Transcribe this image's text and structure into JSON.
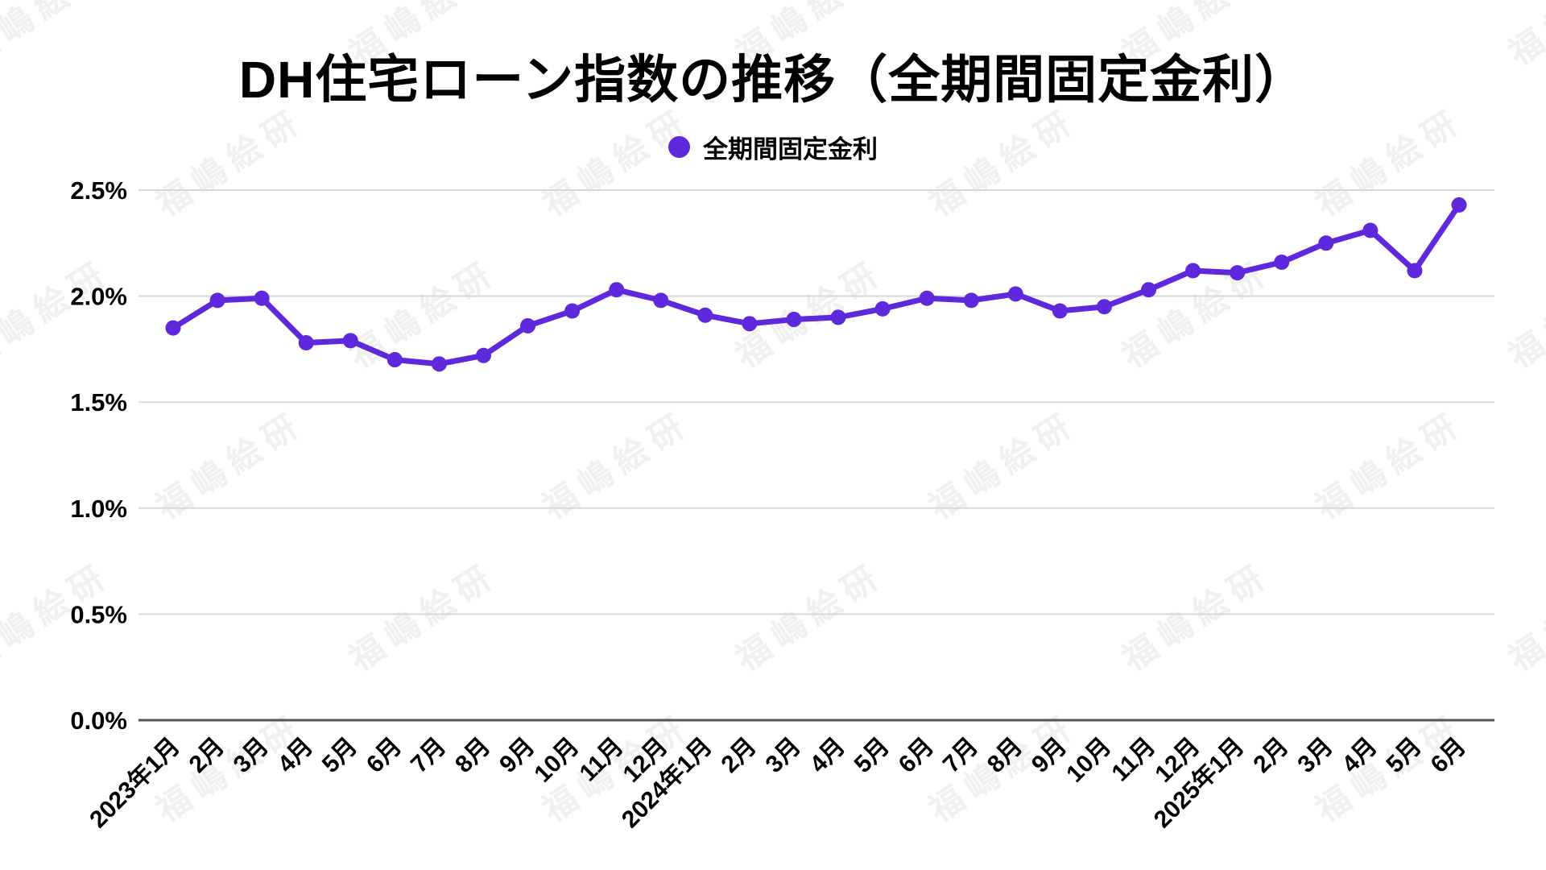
{
  "header": {
    "title": "DH住宅ローン指数の推移（全期間固定金利）"
  },
  "legend": {
    "label": "全期間固定金利",
    "marker_color": "#5e28dc"
  },
  "watermark": {
    "text": "福嶋絵研",
    "color": "#f0eff1"
  },
  "colors": {
    "line": "#5e28dc",
    "grid": "#d9d9d9",
    "axis": "#555555",
    "text": "#000000"
  },
  "chart_data": {
    "type": "line",
    "title": "DH住宅ローン指数の推移（全期間固定金利）",
    "legend_position": "top-center",
    "grid": "horizontal",
    "x_label_rotation": -45,
    "ylim": [
      0,
      2.5
    ],
    "y_ticks": [
      "0.0%",
      "0.5%",
      "1.0%",
      "1.5%",
      "2.0%",
      "2.5%"
    ],
    "categories": [
      "2023年1月",
      "2月",
      "3月",
      "4月",
      "5月",
      "6月",
      "7月",
      "8月",
      "9月",
      "10月",
      "11月",
      "12月",
      "2024年1月",
      "2月",
      "3月",
      "4月",
      "5月",
      "6月",
      "7月",
      "8月",
      "9月",
      "10月",
      "11月",
      "12月",
      "2025年1月",
      "2月",
      "3月",
      "4月",
      "5月",
      "6月"
    ],
    "series": [
      {
        "name": "全期間固定金利",
        "color": "#5e28dc",
        "unit": "%",
        "values": [
          1.85,
          1.98,
          1.99,
          1.78,
          1.79,
          1.7,
          1.68,
          1.72,
          1.86,
          1.93,
          2.03,
          1.98,
          1.91,
          1.87,
          1.89,
          1.9,
          1.94,
          1.99,
          1.98,
          2.01,
          1.93,
          1.95,
          2.03,
          2.12,
          2.11,
          2.16,
          2.25,
          2.31,
          2.12,
          2.43
        ]
      }
    ]
  }
}
